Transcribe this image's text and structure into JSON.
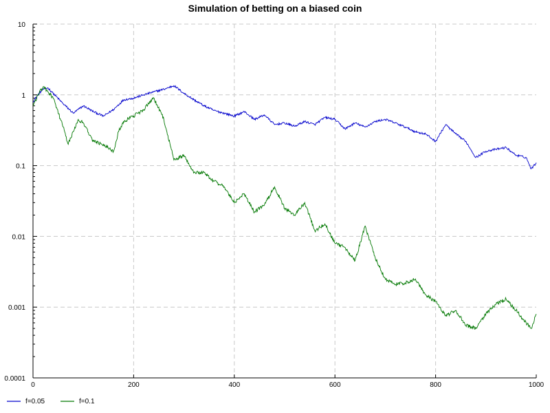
{
  "chart_data": {
    "type": "line",
    "title": "Simulation of betting on a biased coin",
    "xlabel": "",
    "ylabel": "",
    "xlim": [
      0,
      1000
    ],
    "ylim": [
      0.0001,
      10
    ],
    "yscale": "log",
    "grid": true,
    "legend_position": "bottom-left",
    "x_ticks": [
      {
        "value": 0,
        "label": "0"
      },
      {
        "value": 200,
        "label": "200"
      },
      {
        "value": 400,
        "label": "400"
      },
      {
        "value": 600,
        "label": "600"
      },
      {
        "value": 800,
        "label": "800"
      },
      {
        "value": 1000,
        "label": "1000"
      }
    ],
    "y_ticks": [
      {
        "value": 10,
        "label": "10"
      },
      {
        "value": 1,
        "label": "1"
      },
      {
        "value": 0.1,
        "label": "0.1"
      },
      {
        "value": 0.01,
        "label": "0.01"
      },
      {
        "value": 0.001,
        "label": "0.001"
      },
      {
        "value": 0.0001,
        "label": "0.0001"
      }
    ],
    "series": [
      {
        "name": "f=0.05",
        "color": "#0000cc",
        "x": [
          0,
          10,
          20,
          30,
          40,
          60,
          80,
          100,
          120,
          140,
          160,
          180,
          200,
          220,
          240,
          260,
          280,
          300,
          320,
          340,
          360,
          380,
          400,
          420,
          440,
          460,
          480,
          500,
          520,
          540,
          560,
          580,
          600,
          620,
          640,
          660,
          680,
          700,
          720,
          740,
          760,
          780,
          800,
          820,
          840,
          860,
          880,
          900,
          920,
          940,
          960,
          980,
          990,
          1000
        ],
        "values": [
          0.8,
          1.0,
          1.2,
          1.25,
          1.05,
          0.75,
          0.55,
          0.7,
          0.58,
          0.5,
          0.62,
          0.85,
          0.9,
          1.0,
          1.1,
          1.2,
          1.35,
          1.05,
          0.85,
          0.7,
          0.6,
          0.55,
          0.5,
          0.58,
          0.45,
          0.52,
          0.38,
          0.4,
          0.36,
          0.42,
          0.38,
          0.48,
          0.45,
          0.33,
          0.4,
          0.35,
          0.42,
          0.45,
          0.4,
          0.35,
          0.3,
          0.28,
          0.22,
          0.38,
          0.28,
          0.22,
          0.13,
          0.16,
          0.17,
          0.18,
          0.14,
          0.13,
          0.09,
          0.11
        ]
      },
      {
        "name": "f=0.1",
        "color": "#007700",
        "x": [
          0,
          10,
          20,
          30,
          40,
          60,
          70,
          80,
          90,
          100,
          120,
          140,
          160,
          170,
          180,
          200,
          220,
          240,
          260,
          280,
          300,
          320,
          340,
          360,
          380,
          400,
          420,
          440,
          460,
          480,
          500,
          520,
          540,
          560,
          580,
          600,
          620,
          640,
          660,
          680,
          700,
          720,
          740,
          760,
          780,
          800,
          820,
          840,
          860,
          880,
          900,
          920,
          940,
          960,
          980,
          990,
          1000
        ],
        "values": [
          0.7,
          1.0,
          1.3,
          1.1,
          0.9,
          0.35,
          0.2,
          0.3,
          0.45,
          0.4,
          0.22,
          0.2,
          0.16,
          0.3,
          0.42,
          0.5,
          0.62,
          0.9,
          0.45,
          0.12,
          0.14,
          0.08,
          0.08,
          0.06,
          0.05,
          0.03,
          0.04,
          0.022,
          0.028,
          0.05,
          0.025,
          0.02,
          0.03,
          0.012,
          0.015,
          0.008,
          0.007,
          0.0045,
          0.014,
          0.005,
          0.0025,
          0.0021,
          0.0022,
          0.0025,
          0.0015,
          0.0012,
          0.00075,
          0.0009,
          0.00055,
          0.0005,
          0.0008,
          0.0011,
          0.0013,
          0.0009,
          0.0006,
          0.0005,
          0.0008
        ]
      }
    ]
  }
}
